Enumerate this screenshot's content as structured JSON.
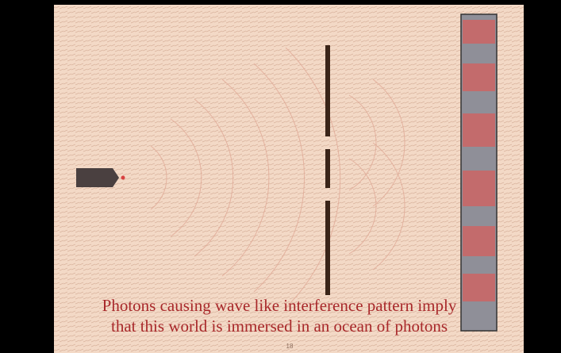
{
  "caption": {
    "lines": [
      "Photons causing wave like interference pattern imply",
      "that this world is immersed in an ocean of photons"
    ]
  },
  "slide_number": "18"
}
